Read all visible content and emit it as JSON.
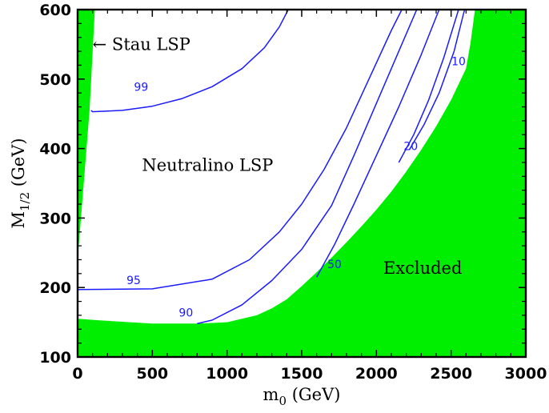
{
  "chart_data": {
    "type": "line",
    "xlabel": "m",
    "xlabel_sub": "0",
    "xlabel_unit": " (GeV)",
    "ylabel": "M",
    "ylabel_sub": "1/2",
    "ylabel_unit": " (GeV)",
    "xlim": [
      0,
      3000
    ],
    "ylim": [
      100,
      600
    ],
    "xticks": [
      0,
      500,
      1000,
      1500,
      2000,
      2500,
      3000
    ],
    "yticks": [
      100,
      200,
      300,
      400,
      500,
      600
    ],
    "grid": false,
    "colors": {
      "excluded": "#00ee00",
      "contour": "#1a1aff",
      "frame": "#000000"
    },
    "regions": [
      {
        "name": "stau-lsp-band",
        "points": [
          [
            0,
            240
          ],
          [
            0,
            600
          ],
          [
            115,
            600
          ],
          [
            80,
            455
          ],
          [
            0,
            240
          ]
        ]
      },
      {
        "name": "excluded-region",
        "points": [
          [
            0,
            155
          ],
          [
            200,
            152
          ],
          [
            500,
            148
          ],
          [
            800,
            148
          ],
          [
            1000,
            150
          ],
          [
            1200,
            160
          ],
          [
            1300,
            170
          ],
          [
            1400,
            183
          ],
          [
            1500,
            202
          ],
          [
            1600,
            222
          ],
          [
            1700,
            243
          ],
          [
            1800,
            265
          ],
          [
            1900,
            288
          ],
          [
            2000,
            312
          ],
          [
            2100,
            338
          ],
          [
            2200,
            367
          ],
          [
            2300,
            398
          ],
          [
            2400,
            432
          ],
          [
            2500,
            470
          ],
          [
            2600,
            515
          ],
          [
            2630,
            552
          ],
          [
            2660,
            600
          ],
          [
            3000,
            600
          ],
          [
            3000,
            100
          ],
          [
            0,
            100
          ]
        ]
      }
    ],
    "series": [
      {
        "label": "99",
        "points": [
          [
            90,
            455
          ],
          [
            100,
            453
          ],
          [
            300,
            455
          ],
          [
            500,
            461
          ],
          [
            700,
            472
          ],
          [
            900,
            489
          ],
          [
            1100,
            515
          ],
          [
            1250,
            545
          ],
          [
            1350,
            575
          ],
          [
            1410,
            600
          ]
        ]
      },
      {
        "label": "95",
        "points": [
          [
            0,
            197
          ],
          [
            500,
            198
          ],
          [
            900,
            212
          ],
          [
            1150,
            240
          ],
          [
            1350,
            280
          ],
          [
            1500,
            320
          ],
          [
            1650,
            370
          ],
          [
            1800,
            430
          ],
          [
            1950,
            500
          ],
          [
            2100,
            570
          ],
          [
            2170,
            600
          ]
        ]
      },
      {
        "label": "90",
        "points": [
          [
            800,
            148
          ],
          [
            900,
            153
          ],
          [
            1100,
            175
          ],
          [
            1300,
            210
          ],
          [
            1500,
            255
          ],
          [
            1700,
            318
          ],
          [
            1850,
            390
          ],
          [
            2000,
            465
          ],
          [
            2150,
            540
          ],
          [
            2270,
            600
          ]
        ]
      },
      {
        "label": "50",
        "points": [
          [
            1600,
            215
          ],
          [
            1720,
            262
          ],
          [
            1850,
            320
          ],
          [
            2000,
            390
          ],
          [
            2150,
            460
          ],
          [
            2300,
            535
          ],
          [
            2420,
            600
          ]
        ]
      },
      {
        "label": "20",
        "points": [
          [
            2150,
            380
          ],
          [
            2250,
            420
          ],
          [
            2350,
            470
          ],
          [
            2450,
            530
          ],
          [
            2550,
            600
          ]
        ]
      },
      {
        "label": "10",
        "points": [
          [
            2220,
            398
          ],
          [
            2320,
            435
          ],
          [
            2420,
            480
          ],
          [
            2520,
            540
          ],
          [
            2590,
            600
          ]
        ]
      }
    ],
    "contour_labels": [
      {
        "text": "99",
        "x": 425,
        "y": 483
      },
      {
        "text": "95",
        "x": 375,
        "y": 205
      },
      {
        "text": "90",
        "x": 725,
        "y": 158
      },
      {
        "text": "50",
        "x": 1720,
        "y": 228
      },
      {
        "text": "20",
        "x": 2230,
        "y": 398
      },
      {
        "text": "10",
        "x": 2550,
        "y": 520
      }
    ],
    "annotations": [
      {
        "text": "← Stau LSP",
        "x": 100,
        "y": 542,
        "anchor": "start"
      },
      {
        "text": "Neutralino LSP",
        "x": 870,
        "y": 368,
        "anchor": "middle"
      },
      {
        "text": "Excluded",
        "x": 2310,
        "y": 220,
        "anchor": "middle"
      }
    ]
  }
}
